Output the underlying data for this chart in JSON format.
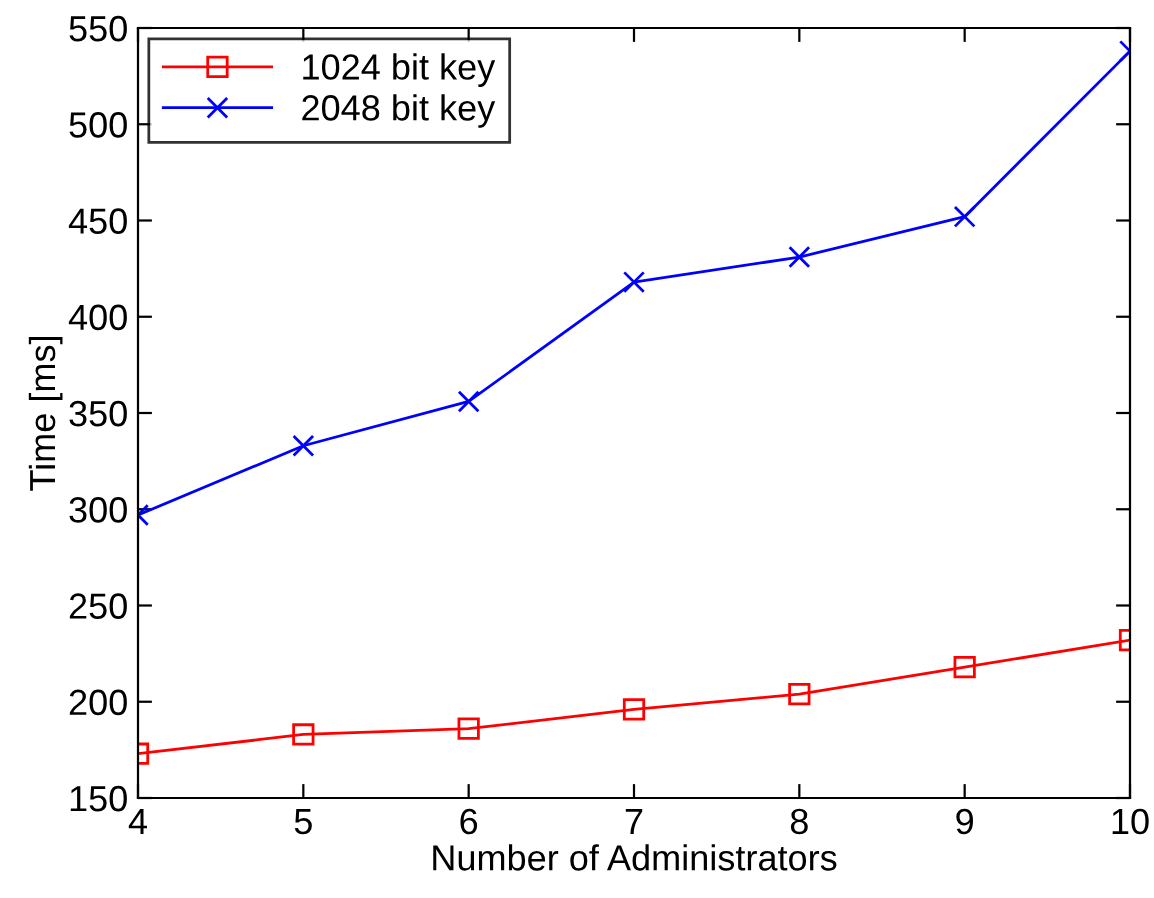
{
  "chart_data": {
    "type": "line",
    "xlabel": "Number of Administrators",
    "ylabel": "Time [ms]",
    "x": [
      4,
      5,
      6,
      7,
      8,
      9,
      10
    ],
    "series": [
      {
        "name": "1024 bit key",
        "color": "#ff0000",
        "marker": "square",
        "values": [
          173,
          183,
          186,
          196,
          204,
          218,
          232
        ]
      },
      {
        "name": "2048 bit key",
        "color": "#0000ff",
        "marker": "cross",
        "values": [
          297,
          333,
          356,
          418,
          431,
          452,
          538
        ]
      }
    ],
    "xlim": [
      4,
      10
    ],
    "xticks": [
      4,
      5,
      6,
      7,
      8,
      9,
      10
    ],
    "ylim": [
      150,
      550
    ],
    "yticks": [
      150,
      200,
      250,
      300,
      350,
      400,
      450,
      500,
      550
    ],
    "grid": false,
    "legend": "top left",
    "line_style": "solid"
  }
}
